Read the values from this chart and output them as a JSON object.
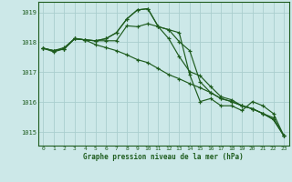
{
  "background_color": "#cce8e8",
  "grid_color": "#aacece",
  "line_color": "#1e5c1e",
  "text_color": "#1e5c1e",
  "xlabel": "Graphe pression niveau de la mer (hPa)",
  "ylim": [
    1014.55,
    1019.35
  ],
  "xlim": [
    -0.5,
    23.5
  ],
  "yticks": [
    1015,
    1016,
    1017,
    1018,
    1019
  ],
  "xticks": [
    0,
    1,
    2,
    3,
    4,
    5,
    6,
    7,
    8,
    9,
    10,
    11,
    12,
    13,
    14,
    15,
    16,
    17,
    18,
    19,
    20,
    21,
    22,
    23
  ],
  "series": [
    [
      1017.8,
      1017.72,
      1017.82,
      1018.12,
      1018.08,
      1018.05,
      1018.05,
      1018.05,
      1018.55,
      1018.52,
      1018.62,
      1018.52,
      1018.42,
      1018.32,
      1016.92,
      1016.02,
      1016.12,
      1015.88,
      1015.88,
      1015.72,
      1016.02,
      1015.88,
      1015.62,
      1014.88
    ],
    [
      1017.8,
      1017.72,
      1017.78,
      1018.12,
      1018.08,
      1018.05,
      1018.12,
      1018.32,
      1018.78,
      1019.08,
      1019.12,
      1018.52,
      1018.12,
      1017.52,
      1017.02,
      1016.88,
      1016.52,
      1016.18,
      1016.08,
      1015.88,
      1015.78,
      1015.62,
      1015.42,
      1014.88
    ],
    [
      1017.8,
      1017.72,
      1017.78,
      1018.12,
      1018.08,
      1018.05,
      1018.12,
      1018.32,
      1018.78,
      1019.08,
      1019.12,
      1018.52,
      1018.42,
      1018.02,
      1017.72,
      1016.68,
      1016.32,
      1016.12,
      1016.02,
      1015.88,
      1015.78,
      1015.62,
      1015.42,
      1014.88
    ],
    [
      1017.8,
      1017.68,
      1017.78,
      1018.12,
      1018.08,
      1017.92,
      1017.82,
      1017.72,
      1017.58,
      1017.42,
      1017.32,
      1017.12,
      1016.92,
      1016.78,
      1016.62,
      1016.48,
      1016.32,
      1016.12,
      1016.02,
      1015.88,
      1015.78,
      1015.62,
      1015.48,
      1014.88
    ]
  ]
}
